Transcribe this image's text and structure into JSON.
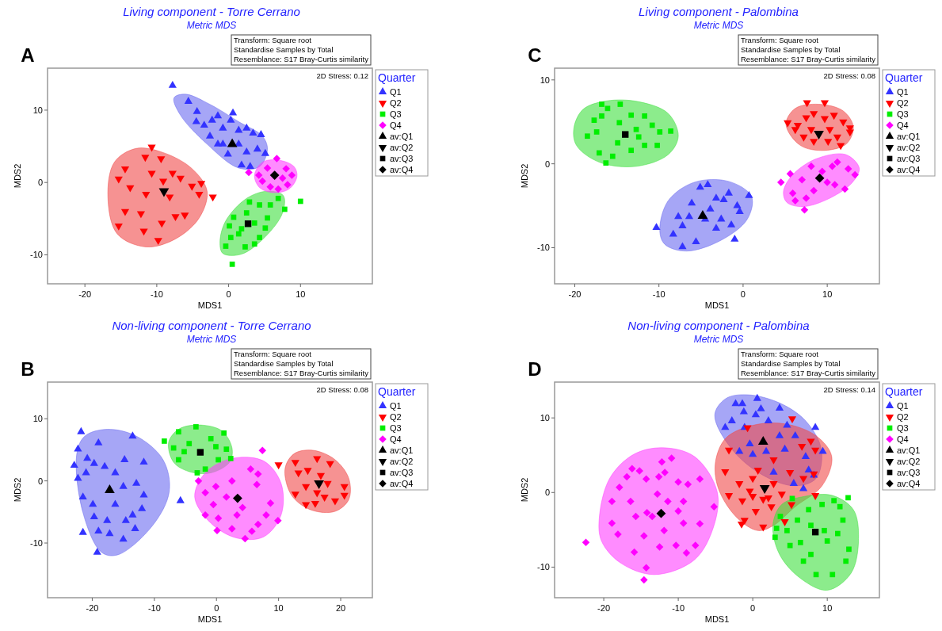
{
  "chart_data": [
    {
      "type": "scatter",
      "title": "Living component - Torre Cerrano",
      "subtitle": "Metric MDS",
      "xlabel": "MDS1",
      "ylabel": "MDS2",
      "legend_title": "Quarter",
      "legend": "right",
      "annotations": [
        "A",
        "Transform: Square root",
        "Standardise Samples by Total",
        "Resemblance: S17 Bray-Curtis similarity",
        "2D Stress: 0.12"
      ],
      "xlim": [
        -25.2,
        20
      ],
      "ylim": [
        -14,
        15.8
      ],
      "xticks": [
        -20,
        -10,
        0,
        10
      ],
      "yticks": [
        -10,
        0,
        10
      ],
      "series": [
        {
          "type": "area",
          "color": "#6a6af0",
          "x": [
            -7.6,
            -6.0,
            -2.6,
            1.4,
            4.7,
            5.4,
            4.3,
            1.4,
            -3.0,
            -6.7
          ],
          "values": [
            11.7,
            12.2,
            10.8,
            8.4,
            6.4,
            4.6,
            2.2,
            2.0,
            5.3,
            9.3
          ]
        },
        {
          "type": "area",
          "color": "#f04a4a",
          "x": [
            -16.8,
            -15.9,
            -12.9,
            -9.3,
            -5.2,
            -3.0,
            -4.1,
            -7.4,
            -11.5,
            -15.5
          ],
          "values": [
            -2.0,
            2.8,
            4.7,
            4.2,
            2.0,
            -1.2,
            -4.9,
            -7.8,
            -8.9,
            -7.1
          ]
        },
        {
          "type": "area",
          "color": "#40e040",
          "x": [
            -1.2,
            -0.4,
            2.5,
            5.4,
            7.6,
            7.5,
            5.1,
            1.8,
            -0.8
          ],
          "values": [
            -8.2,
            -5.3,
            -2.2,
            -1.2,
            -1.8,
            -4.2,
            -7.5,
            -9.9,
            -9.8
          ]
        },
        {
          "type": "area",
          "color": "#ff40ff",
          "x": [
            3.6,
            4.7,
            6.9,
            9.1,
            9.5,
            8.4,
            6.2,
            4.3
          ],
          "values": [
            1.0,
            2.8,
            3.1,
            2.2,
            0.8,
            -0.9,
            -1.4,
            -0.7
          ]
        },
        {
          "name": "Q1",
          "color": "#3333ff",
          "marker": "triangle",
          "x": [
            -7.8,
            -5.6,
            -4.4,
            -4.5,
            -3.4,
            -2.3,
            -1.5,
            -0.8,
            0.6,
            0.3,
            1.4,
            2.5,
            3.4,
            4.5,
            -0.8,
            1.4,
            2.5,
            4.0,
            5.1,
            -0.1,
            1.8,
            3.0,
            -1.5,
            -2.6
          ],
          "values": [
            13.4,
            11.2,
            9.8,
            8.4,
            7.9,
            8.6,
            9.2,
            7.5,
            9.6,
            8.6,
            7.2,
            7.5,
            6.8,
            6.6,
            5.3,
            5.3,
            4.2,
            4.6,
            4.0,
            3.9,
            2.4,
            2.2,
            5.3,
            6.4
          ]
        },
        {
          "name": "Q2",
          "color": "#ff0000",
          "marker": "triangle-down",
          "x": [
            -10.7,
            -15.3,
            -14.4,
            -13.7,
            -14.4,
            -15.3,
            -11.8,
            -9.8,
            -11.6,
            -9.4,
            -10.7,
            -11.5,
            -8.2,
            -6.7,
            -5.1,
            -3.8,
            -4.1,
            -2.2,
            -6.1,
            -9.3,
            -7.4,
            -12.2,
            -9.1,
            -7.8
          ],
          "values": [
            4.9,
            0.5,
            1.9,
            -0.7,
            -4.0,
            -6.0,
            -6.7,
            -8.0,
            3.5,
            3.3,
            1.3,
            -1.6,
            -2.0,
            0.6,
            -0.5,
            -0.1,
            -1.6,
            -2.0,
            -4.5,
            -5.6,
            -4.7,
            -4.3,
            0.2,
            1.3
          ]
        },
        {
          "name": "Q3",
          "color": "#00ee00",
          "marker": "square",
          "x": [
            0.5,
            -0.4,
            0.3,
            0.1,
            0.7,
            1.4,
            2.3,
            2.5,
            3.6,
            4.3,
            4.3,
            5.4,
            5.8,
            6.9,
            7.8,
            10.0,
            2.9,
            1.8,
            5.1,
            3.6
          ],
          "values": [
            -11.3,
            -8.8,
            -7.6,
            -6.0,
            -4.8,
            -7.1,
            -8.9,
            -4.2,
            -5.6,
            -7.6,
            -3.1,
            -4.9,
            -3.1,
            -2.2,
            -3.7,
            -2.6,
            -2.7,
            -6.4,
            -6.3,
            -8.5
          ]
        },
        {
          "name": "Q4",
          "color": "#ff00ff",
          "marker": "diamond",
          "x": [
            2.8,
            6.7,
            4.2,
            5.4,
            8.0,
            8.8,
            8.2,
            5.8,
            6.9,
            4.7,
            7.5
          ],
          "values": [
            1.4,
            3.3,
            1.0,
            2.0,
            1.9,
            1.0,
            -0.3,
            -0.6,
            -0.9,
            0.2,
            0.6
          ]
        },
        {
          "name": "av:Q1",
          "color": "#000000",
          "marker": "triangle",
          "x": [
            0.5
          ],
          "values": [
            5.3
          ]
        },
        {
          "name": "av:Q2",
          "color": "#000000",
          "marker": "triangle-down",
          "x": [
            -9.0
          ],
          "values": [
            -1.2
          ]
        },
        {
          "name": "av:Q3",
          "color": "#000000",
          "marker": "square",
          "x": [
            2.7
          ],
          "values": [
            -5.7
          ]
        },
        {
          "name": "av:Q4",
          "color": "#000000",
          "marker": "diamond",
          "x": [
            6.4
          ],
          "values": [
            1.0
          ]
        }
      ]
    },
    {
      "type": "scatter",
      "title": "Living component - Palombina",
      "subtitle": "Metric MDS",
      "xlabel": "MDS1",
      "ylabel": "MDS2",
      "legend_title": "Quarter",
      "legend": "right",
      "annotations": [
        "C",
        "Transform: Square root",
        "Standardise Samples by Total",
        "Resemblance: S17 Bray-Curtis similarity",
        "2D Stress: 0.08"
      ],
      "xlim": [
        -22.4,
        16.2
      ],
      "ylim": [
        -14.3,
        11.4
      ],
      "xticks": [
        -20,
        -10,
        0,
        10
      ],
      "yticks": [
        -10,
        0,
        10
      ],
      "series": [
        {
          "type": "area",
          "color": "#6a6af0",
          "x": [
            -9.9,
            -8.9,
            -5.8,
            -1.7,
            1.0,
            0.5,
            -2.6,
            -6.7,
            -9.3
          ],
          "values": [
            -7.9,
            -4.4,
            -2.2,
            -2.1,
            -3.9,
            -6.6,
            -9.1,
            -10.4,
            -9.6
          ]
        },
        {
          "type": "area",
          "color": "#f04a4a",
          "x": [
            5.1,
            6.2,
            9.0,
            11.9,
            13.1,
            12.3,
            9.7,
            6.8
          ],
          "values": [
            4.7,
            6.6,
            7.1,
            6.3,
            4.4,
            2.4,
            1.6,
            2.2
          ]
        },
        {
          "type": "area",
          "color": "#40e040",
          "x": [
            -20.1,
            -19.0,
            -16.2,
            -12.4,
            -8.9,
            -7.7,
            -8.9,
            -12.7,
            -17.1,
            -19.8
          ],
          "values": [
            4.3,
            6.5,
            7.5,
            7.4,
            6.0,
            3.3,
            1.1,
            -0.3,
            0.2,
            2.2
          ]
        },
        {
          "type": "area",
          "color": "#ff40ff",
          "x": [
            4.8,
            5.9,
            8.7,
            12.2,
            13.8,
            13.0,
            10.3,
            7.1,
            5.2
          ],
          "values": [
            -3.3,
            -1.3,
            0.6,
            1.1,
            -0.5,
            -2.2,
            -4.1,
            -5.1,
            -4.6
          ]
        },
        {
          "name": "Q1",
          "color": "#3333ff",
          "marker": "triangle",
          "x": [
            -10.3,
            -8.3,
            -7.2,
            -5.6,
            -7.2,
            -6.1,
            -5.1,
            -4.2,
            -3.2,
            -2.3,
            -1.7,
            -0.7,
            0.7,
            -0.4,
            -1.4,
            -1.0,
            -3.2,
            -4.5,
            -2.6,
            -7.7,
            -6.4,
            -3.9
          ],
          "values": [
            -7.6,
            -8.4,
            -9.9,
            -9.3,
            -7.4,
            -4.7,
            -2.8,
            -2.5,
            -4.1,
            -4.3,
            -3.5,
            -5.0,
            -3.8,
            -5.7,
            -7.3,
            -9.0,
            -7.7,
            -6.6,
            -6.6,
            -6.3,
            -6.3,
            -5.4
          ]
        },
        {
          "name": "Q2",
          "color": "#ff0000",
          "marker": "triangle-down",
          "x": [
            7.6,
            9.7,
            5.3,
            6.5,
            7.5,
            8.4,
            9.7,
            10.8,
            11.9,
            12.7,
            12.7,
            11.2,
            10.1,
            8.4,
            7.2,
            6.2,
            8.1,
            10.3,
            11.6
          ],
          "values": [
            7.3,
            7.3,
            4.9,
            4.6,
            5.5,
            6.0,
            5.4,
            5.8,
            5.0,
            4.3,
            3.8,
            3.2,
            2.7,
            2.7,
            3.2,
            4.1,
            4.1,
            4.1,
            2.2
          ]
        },
        {
          "name": "Q3",
          "color": "#00ee00",
          "marker": "square",
          "x": [
            -16.8,
            -14.6,
            -16.1,
            -17.7,
            -18.5,
            -17.4,
            -17.1,
            -16.3,
            -15.5,
            -16.8,
            -14.7,
            -13.3,
            -11.7,
            -12.7,
            -10.8,
            -9.9,
            -8.6,
            -10.2,
            -11.7,
            -13.3,
            -14.9,
            -12.4
          ],
          "values": [
            7.1,
            7.1,
            6.6,
            5.2,
            3.3,
            3.8,
            1.3,
            0.1,
            0.9,
            5.7,
            4.9,
            5.8,
            5.7,
            4.1,
            4.6,
            3.8,
            3.9,
            2.2,
            2.2,
            1.6,
            2.5,
            3.2
          ]
        },
        {
          "name": "Q4",
          "color": "#ff00ff",
          "marker": "diamond",
          "x": [
            4.5,
            5.6,
            5.9,
            7.3,
            7.5,
            8.4,
            8.1,
            9.4,
            10.0,
            11.2,
            12.5,
            13.3,
            12.1,
            10.9,
            7.0,
            6.2,
            10.6
          ],
          "values": [
            -2.2,
            -1.2,
            -3.5,
            -5.5,
            -4.1,
            -3.2,
            -0.3,
            -0.9,
            -2.2,
            0.2,
            -0.6,
            -1.3,
            -3.0,
            -2.5,
            -1.9,
            -4.4,
            -0.3
          ]
        },
        {
          "name": "av:Q1",
          "color": "#000000",
          "marker": "triangle",
          "x": [
            -4.8
          ],
          "values": [
            -6.2
          ]
        },
        {
          "name": "av:Q2",
          "color": "#000000",
          "marker": "triangle-down",
          "x": [
            9.0
          ],
          "values": [
            3.6
          ]
        },
        {
          "name": "av:Q3",
          "color": "#000000",
          "marker": "square",
          "x": [
            -14.0
          ],
          "values": [
            3.5
          ]
        },
        {
          "name": "av:Q4",
          "color": "#000000",
          "marker": "diamond",
          "x": [
            9.1
          ],
          "values": [
            -1.7
          ]
        }
      ]
    },
    {
      "type": "scatter",
      "title": "Non-living component - Torre Cerrano",
      "subtitle": "Metric MDS",
      "xlabel": "MDS1",
      "ylabel": "MDS2",
      "legend_title": "Quarter",
      "legend": "right",
      "annotations": [
        "B",
        "Transform: Square root",
        "Standardise Samples by Total",
        "Resemblance: S17 Bray-Curtis similarity",
        "2D Stress: 0.08"
      ],
      "xlim": [
        -27.2,
        25.1
      ],
      "ylim": [
        -18.8,
        15.9
      ],
      "xticks": [
        -20,
        -10,
        0,
        10,
        20
      ],
      "yticks": [
        -10,
        0,
        10
      ],
      "series": [
        {
          "type": "area",
          "color": "#6a6af0",
          "x": [
            -22.5,
            -21.2,
            -17.6,
            -12.9,
            -8.6,
            -7.6,
            -10.3,
            -15.9,
            -18.5,
            -21.5
          ],
          "values": [
            4.3,
            7.2,
            8.3,
            7.2,
            3.4,
            -1.7,
            -7.2,
            -11.9,
            -11.5,
            -5.1
          ]
        },
        {
          "type": "area",
          "color": "#f04a4a",
          "x": [
            11.2,
            12.7,
            15.7,
            19.1,
            21.3,
            21.3,
            19.1,
            15.3,
            12.3,
            11.1
          ],
          "values": [
            2.6,
            4.5,
            4.9,
            3.4,
            0.4,
            -3.0,
            -4.9,
            -4.7,
            -2.6,
            0.4
          ]
        },
        {
          "type": "area",
          "color": "#40e040",
          "x": [
            -7.7,
            -6.1,
            -3.1,
            0.8,
            2.5,
            2.1,
            -0.9,
            -4.4,
            -6.9
          ],
          "values": [
            6.2,
            8.3,
            9.0,
            8.1,
            5.3,
            3.0,
            1.3,
            1.5,
            3.0
          ]
        },
        {
          "type": "area",
          "color": "#ff40ff",
          "x": [
            -3.5,
            -1.8,
            2.5,
            7.6,
            10.4,
            10.4,
            7.6,
            3.3,
            -0.9
          ],
          "values": [
            -2.6,
            1.3,
            3.6,
            3.2,
            -0.4,
            -5.5,
            -9.0,
            -9.2,
            -6.8
          ]
        },
        {
          "name": "Q1",
          "color": "#3333ff",
          "marker": "triangle",
          "x": [
            -21.8,
            -22.3,
            -22.9,
            -22.3,
            -21.5,
            -19.2,
            -19.0,
            -20.8,
            -19.7,
            -21.0,
            -21.5,
            -19.9,
            -19.7,
            -19.0,
            -17.2,
            -15.0,
            -13.1,
            -13.5,
            -11.7,
            -12.0,
            -12.9,
            -11.7,
            -13.5,
            -14.8,
            -16.3,
            -18.0,
            -15.0,
            -16.3,
            -17.6,
            -14.6,
            -5.8
          ],
          "values": [
            7.9,
            5.1,
            2.5,
            0.4,
            -8.3,
            -11.5,
            6.1,
            3.6,
            2.8,
            1.3,
            -2.6,
            -3.8,
            -5.8,
            -8.1,
            -8.5,
            -9.4,
            -7.7,
            -5.5,
            -2.3,
            -4.5,
            -0.4,
            3.0,
            7.2,
            3.4,
            1.3,
            2.3,
            -0.9,
            -3.8,
            -6.4,
            -6.4,
            -3.2
          ]
        },
        {
          "name": "Q2",
          "color": "#ff0000",
          "marker": "triangle-down",
          "x": [
            10.0,
            12.7,
            16.2,
            18.3,
            13.2,
            14.7,
            14.4,
            12.7,
            14.4,
            15.9,
            17.4,
            19.1,
            20.6,
            20.6,
            17.9,
            16.2,
            16.8
          ],
          "values": [
            2.6,
            3.0,
            3.6,
            2.8,
            1.3,
            1.7,
            -0.9,
            -2.1,
            -3.8,
            -3.6,
            -2.6,
            -3.2,
            -0.9,
            -2.3,
            -0.4,
            -1.9,
            0.9
          ]
        },
        {
          "name": "Q3",
          "color": "#00ee00",
          "marker": "square",
          "x": [
            -8.4,
            -6.1,
            -3.3,
            1.2,
            -6.9,
            -6.1,
            -3.1,
            -1.8,
            0.3,
            1.6,
            2.3,
            -4.4,
            -0.9,
            -5.2,
            -0.1
          ],
          "values": [
            6.4,
            7.9,
            8.7,
            7.7,
            5.3,
            3.4,
            1.3,
            1.9,
            3.4,
            5.1,
            3.6,
            6.0,
            6.8,
            4.7,
            5.5
          ]
        },
        {
          "name": "Q4",
          "color": "#ff00ff",
          "marker": "diamond",
          "x": [
            -2.9,
            -1.8,
            -1.8,
            0.1,
            0.3,
            2.5,
            4.6,
            5.7,
            5.5,
            7.4,
            6.7,
            6.5,
            8.7,
            9.9,
            8.0,
            6.7,
            2.5,
            1.6,
            4.2,
            -0.1,
            3.3,
            -0.5
          ],
          "values": [
            0.0,
            -1.9,
            -5.5,
            -8.0,
            -6.0,
            -7.7,
            -9.3,
            -8.1,
            1.9,
            4.9,
            1.1,
            -0.6,
            -3.6,
            -6.4,
            -5.5,
            -7.0,
            0.0,
            -2.6,
            -4.3,
            -0.9,
            -5.5,
            -3.8
          ]
        },
        {
          "name": "av:Q1",
          "color": "#000000",
          "marker": "triangle",
          "x": [
            -17.2
          ],
          "values": [
            -1.5
          ]
        },
        {
          "name": "av:Q2",
          "color": "#000000",
          "marker": "triangle-down",
          "x": [
            16.5
          ],
          "values": [
            -0.4
          ]
        },
        {
          "name": "av:Q3",
          "color": "#000000",
          "marker": "square",
          "x": [
            -2.6
          ],
          "values": [
            4.6
          ]
        },
        {
          "name": "av:Q4",
          "color": "#000000",
          "marker": "diamond",
          "x": [
            3.4
          ],
          "values": [
            -2.8
          ]
        }
      ]
    },
    {
      "type": "scatter",
      "title": "Non-living component - Palombina",
      "subtitle": "Metric MDS",
      "xlabel": "MDS1",
      "ylabel": "MDS2",
      "legend_title": "Quarter",
      "legend": "right",
      "annotations": [
        "D",
        "Transform: Square root",
        "Standardise Samples by Total",
        "Resemblance: S17 Bray-Curtis similarity",
        "2D Stress: 0.14"
      ],
      "xlim": [
        -26.6,
        17
      ],
      "ylim": [
        -14.1,
        14.8
      ],
      "xticks": [
        -20,
        -10,
        0,
        10
      ],
      "yticks": [
        -10,
        0,
        10
      ],
      "series": [
        {
          "type": "area",
          "color": "#6a6af0",
          "x": [
            -5.1,
            -3.6,
            -0.7,
            3.6,
            7.1,
            9.2,
            8.5,
            5.7,
            1.4,
            -2.8
          ],
          "values": [
            10.4,
            12.6,
            13.1,
            12.0,
            9.6,
            5.8,
            1.9,
            0.9,
            2.3,
            5.8
          ]
        },
        {
          "type": "area",
          "color": "#f04a4a",
          "x": [
            -5.0,
            -3.6,
            0,
            4.3,
            8.5,
            10.6,
            9.3,
            5.7,
            2.8,
            0.7,
            -2.1,
            -4.6
          ],
          "values": [
            4.1,
            7.3,
            9.0,
            9.2,
            7.6,
            4.8,
            0.9,
            -1.9,
            -4.4,
            -5.1,
            -3.4,
            0.5
          ]
        },
        {
          "type": "area",
          "color": "#40e040",
          "x": [
            2.7,
            3.9,
            7.1,
            10.7,
            13.5,
            14.2,
            13.2,
            10.0,
            6.4,
            3.6
          ],
          "values": [
            -4.4,
            -1.6,
            -0.5,
            -0.4,
            -2.3,
            -6.2,
            -10.8,
            -13.1,
            -11.5,
            -8.3
          ]
        },
        {
          "type": "area",
          "color": "#ff40ff",
          "x": [
            -20.6,
            -19.2,
            -16.0,
            -12.1,
            -7.8,
            -4.8,
            -5.2,
            -7.8,
            -13.2,
            -17.8,
            -20.3
          ],
          "values": [
            -3.4,
            1.9,
            5.1,
            6.0,
            4.8,
            0.2,
            -4.4,
            -9.0,
            -11.0,
            -9.4,
            -6.5
          ]
        },
        {
          "name": "Q1",
          "color": "#3333ff",
          "marker": "triangle",
          "x": [
            0.6,
            -2.3,
            -1.4,
            1.1,
            3.6,
            -1.2,
            0.4,
            -2.8,
            -3.7,
            -1.1,
            2.1,
            4.6,
            8.4,
            9.4,
            7.1,
            6.8,
            5.7,
            3.6,
            4.3,
            1.8,
            0,
            -1.8,
            -0.4,
            2.8,
            5.5,
            8.2,
            7.5
          ],
          "values": [
            12.6,
            11.9,
            11.9,
            11.2,
            11.3,
            10.8,
            10.4,
            9.6,
            8.7,
            8.7,
            9.6,
            9.0,
            8.7,
            5.5,
            4.8,
            0.5,
            7.6,
            7.6,
            5.8,
            5.5,
            5.1,
            5.5,
            6.5,
            2.7,
            1.2,
            2.3,
            3.0
          ]
        },
        {
          "name": "Q2",
          "color": "#ff0000",
          "marker": "triangle-down",
          "x": [
            5.3,
            -0.7,
            -3.2,
            -3.7,
            -1.8,
            -3.2,
            -1.4,
            -0.4,
            0,
            0.7,
            2.8,
            2.8,
            5.0,
            6.6,
            7.8,
            8.4,
            8.2,
            6.8,
            8.4,
            5.2,
            3.9,
            2.5,
            0.4,
            2.1,
            1.4,
            -1.1,
            -1.5,
            1.4,
            4.3,
            0
          ],
          "values": [
            9.9,
            8.7,
            5.7,
            2.8,
            1.2,
            -0.4,
            -1.1,
            0.2,
            1.9,
            3.0,
            4.4,
            1.2,
            2.7,
            6.2,
            6.9,
            5.7,
            2.5,
            1.9,
            -0.4,
            -1.6,
            -0.2,
            -1.9,
            -2.5,
            -0.7,
            -0.9,
            -3.7,
            -4.2,
            -4.6,
            -3.9,
            -0.5
          ]
        },
        {
          "name": "Q3",
          "color": "#00ee00",
          "marker": "square",
          "x": [
            12.8,
            5.3,
            3.7,
            3.2,
            3.0,
            5.0,
            6.4,
            6.8,
            8.5,
            10.7,
            12.5,
            12.9,
            11.4,
            12.1,
            11.7,
            10.9,
            9.3,
            7.5,
            6.0,
            7.8,
            10.0,
            7.8,
            9.6,
            4.6
          ],
          "values": [
            -0.7,
            -0.8,
            -3.2,
            -4.8,
            -6.0,
            -7.1,
            -6.7,
            -9.2,
            -11.0,
            -11.0,
            -9.2,
            -7.6,
            -5.5,
            -3.7,
            -1.9,
            -1.1,
            -1.6,
            -2.3,
            -3.7,
            -4.4,
            -6.5,
            -8.3,
            -5.1,
            -5.1
          ]
        },
        {
          "name": "Q4",
          "color": "#ff00ff",
          "marker": "diamond",
          "x": [
            -22.4,
            -14.6,
            -14.3,
            -15.9,
            -18.1,
            -18.9,
            -18.9,
            -17.9,
            -16.9,
            -16.2,
            -15.2,
            -14.3,
            -12.6,
            -12.2,
            -10.9,
            -11.8,
            -10.0,
            -8.7,
            -7.1,
            -5.2,
            -7.1,
            -7.7,
            -8.9,
            -10.3,
            -12.5,
            -14.6,
            -15.7,
            -16.4,
            -14.2,
            -11.4,
            -10.0,
            -9.3,
            -11.9,
            -13.5,
            -12.8,
            -9.3
          ],
          "values": [
            -6.7,
            -11.7,
            -10.1,
            -8.0,
            -5.6,
            -4.1,
            -1.2,
            0.7,
            2.1,
            3.2,
            2.9,
            1.8,
            2.1,
            4.1,
            4.6,
            2.7,
            1.4,
            1.1,
            1.8,
            -1.9,
            -4.2,
            -7.1,
            -8.1,
            -7.1,
            -7.3,
            -5.8,
            -3.2,
            -1.2,
            -2.7,
            -1.2,
            -2.5,
            -4.1,
            -5.1,
            -3.2,
            -0.2,
            -1.2
          ]
        },
        {
          "name": "av:Q1",
          "color": "#000000",
          "marker": "triangle",
          "x": [
            1.4
          ],
          "values": [
            6.8
          ]
        },
        {
          "name": "av:Q2",
          "color": "#000000",
          "marker": "triangle-down",
          "x": [
            1.6
          ],
          "values": [
            0.6
          ]
        },
        {
          "name": "av:Q3",
          "color": "#000000",
          "marker": "square",
          "x": [
            8.4
          ],
          "values": [
            -5.3
          ]
        },
        {
          "name": "av:Q4",
          "color": "#000000",
          "marker": "diamond",
          "x": [
            -12.3
          ],
          "values": [
            -2.8
          ]
        }
      ]
    }
  ]
}
